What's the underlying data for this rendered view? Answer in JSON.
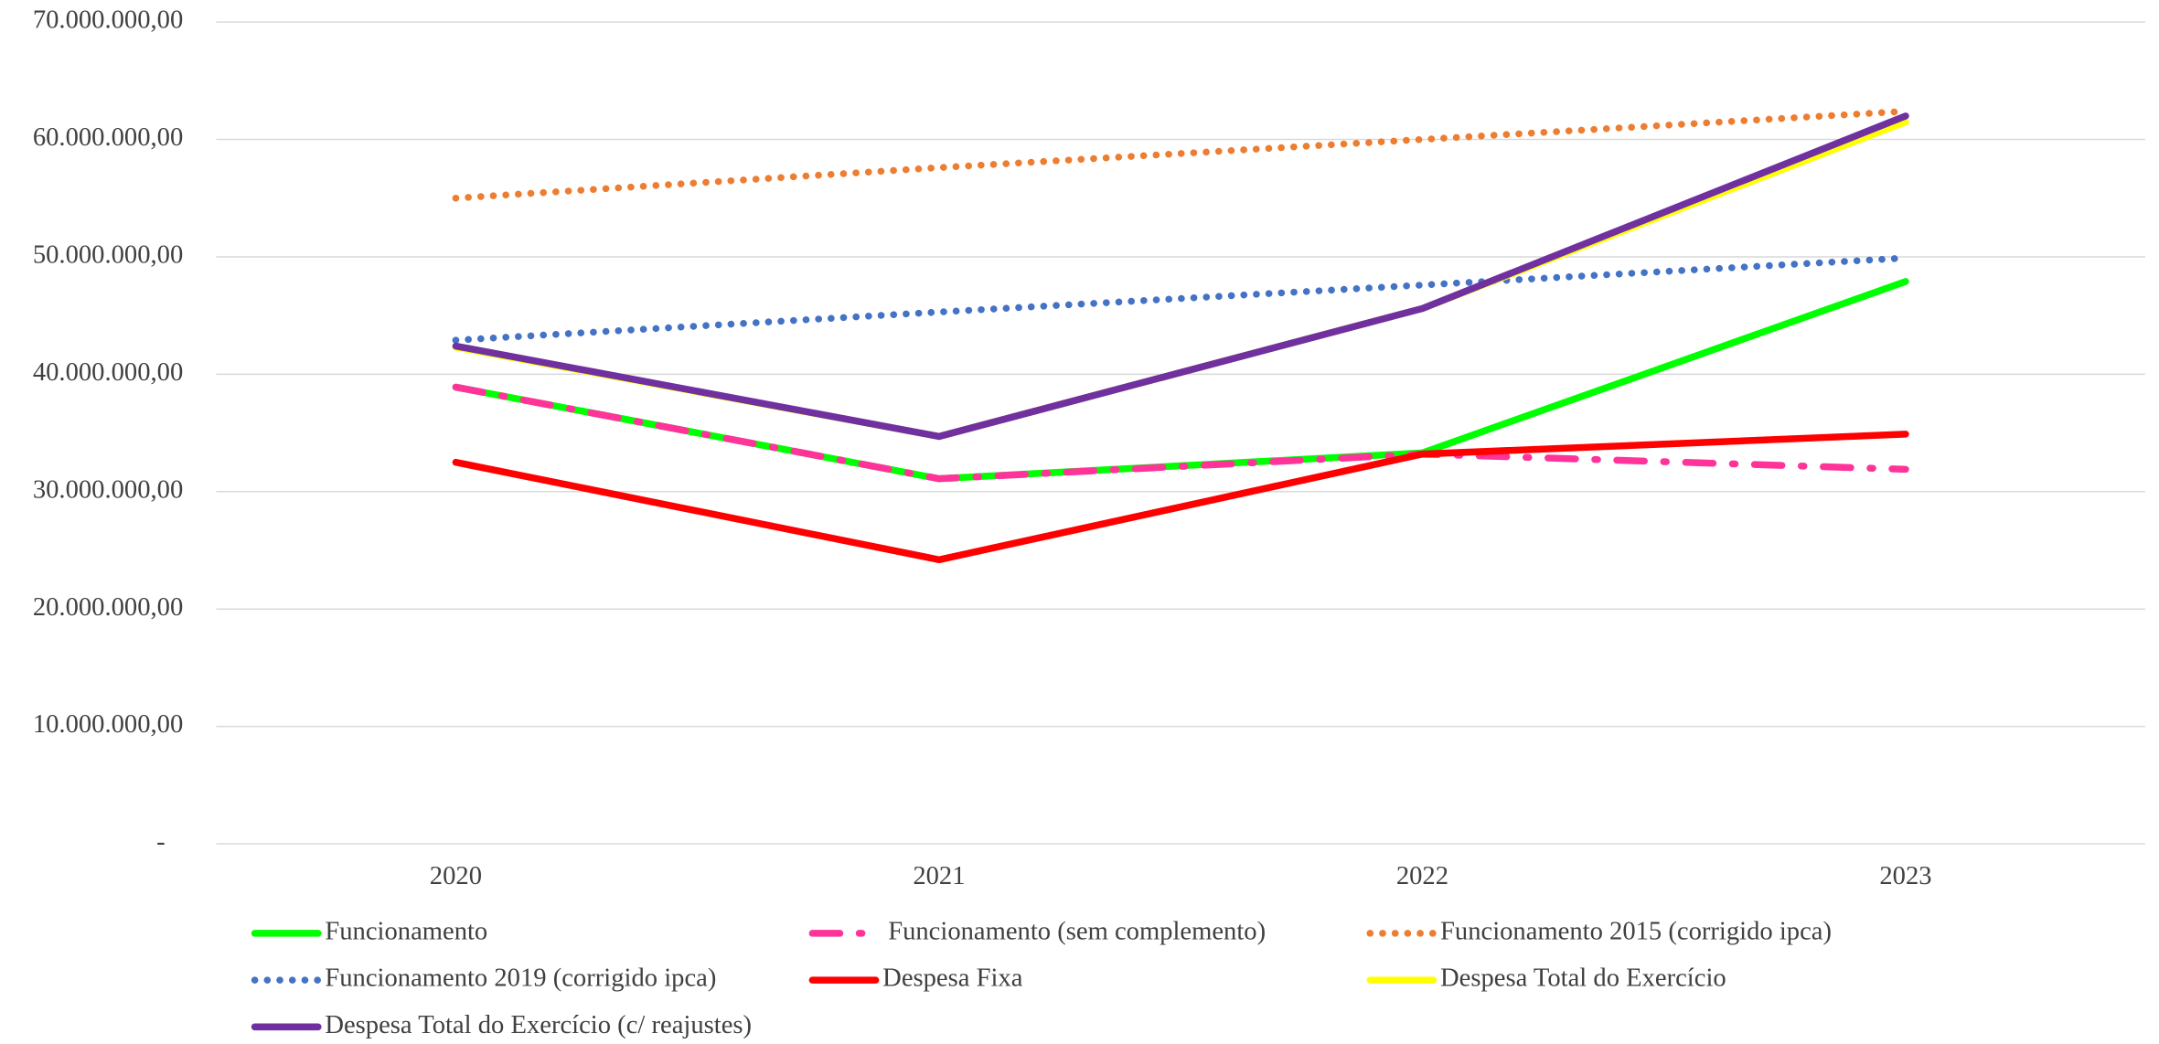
{
  "chart_data": {
    "type": "line",
    "x": [
      "2020",
      "2021",
      "2022",
      "2023"
    ],
    "ylim": [
      0,
      70000000
    ],
    "yticks": [
      {
        "value": 0,
        "label": "-"
      },
      {
        "value": 10000000,
        "label": "10.000.000,00"
      },
      {
        "value": 20000000,
        "label": "20.000.000,00"
      },
      {
        "value": 30000000,
        "label": "30.000.000,00"
      },
      {
        "value": 40000000,
        "label": "40.000.000,00"
      },
      {
        "value": 50000000,
        "label": "50.000.000,00"
      },
      {
        "value": 60000000,
        "label": "60.000.000,00"
      },
      {
        "value": 70000000,
        "label": "70.000.000,00"
      }
    ],
    "grid": true,
    "legend": "bottom",
    "series": [
      {
        "name": "Funcionamento",
        "color": "#00ff00",
        "style": "solid",
        "values": [
          38900000,
          31100000,
          33300000,
          47900000
        ]
      },
      {
        "name": "Funcionamento (sem complemento)",
        "color": "#ff3399",
        "style": "dash-dot",
        "values": [
          38900000,
          31100000,
          33200000,
          31900000
        ]
      },
      {
        "name": "Funcionamento 2015 (corrigido ipca)",
        "color": "#ed7d31",
        "style": "dot",
        "values": [
          55000000,
          57600000,
          60000000,
          62400000
        ]
      },
      {
        "name": "Funcionamento 2019 (corrigido ipca)",
        "color": "#4472c4",
        "style": "dot",
        "values": [
          42900000,
          45300000,
          47600000,
          49900000
        ]
      },
      {
        "name": "Despesa Fixa",
        "color": "#ff0000",
        "style": "solid",
        "values": [
          32500000,
          24200000,
          33200000,
          34900000
        ]
      },
      {
        "name": "Despesa Total do Exercício",
        "color": "#ffff00",
        "style": "solid",
        "values": [
          42300000,
          34700000,
          45600000,
          61500000
        ]
      },
      {
        "name": "Despesa Total do Exercício (c/ reajustes)",
        "color": "#7030a0",
        "style": "solid",
        "values": [
          42400000,
          34700000,
          45600000,
          62000000
        ]
      }
    ]
  }
}
